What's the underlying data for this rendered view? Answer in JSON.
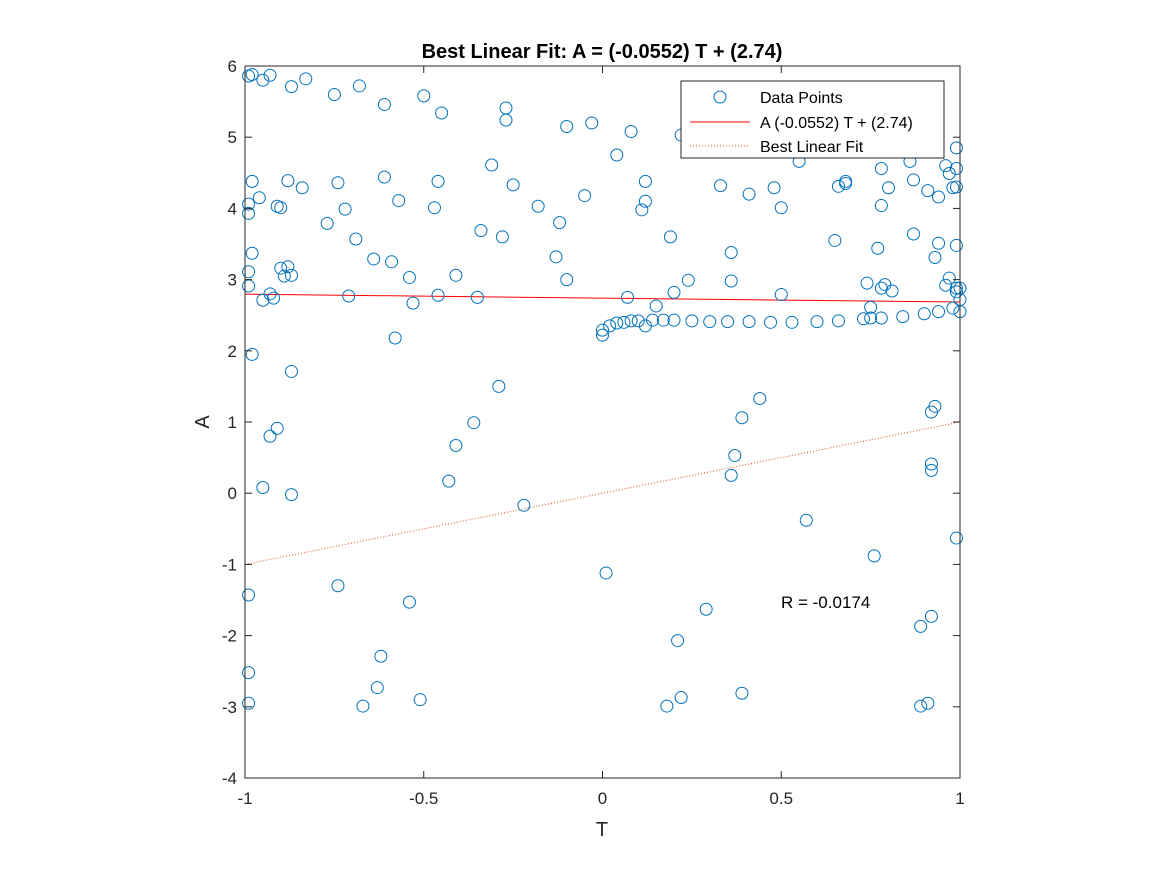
{
  "chart_data": {
    "type": "scatter",
    "title": "Best Linear Fit:  A = (-0.0552) T + (2.74)",
    "xlabel": "T",
    "ylabel": "A",
    "xlim": [
      -1,
      1
    ],
    "ylim": [
      -4,
      6
    ],
    "xticks": [
      -1,
      -0.5,
      0,
      0.5,
      1
    ],
    "xtick_labels": [
      "-1",
      "-0.5",
      "0",
      "0.5",
      "1"
    ],
    "yticks": [
      -4,
      -3,
      -2,
      -1,
      0,
      1,
      2,
      3,
      4,
      5,
      6
    ],
    "ytick_labels": [
      "-4",
      "-3",
      "-2",
      "-1",
      "0",
      "1",
      "2",
      "3",
      "4",
      "5",
      "6"
    ],
    "grid": false,
    "legend_position": "top-right",
    "annotation": "R = -0.0174",
    "colors": {
      "points": "#0072BD",
      "fit_line": "#FF0000",
      "best_line": "#D95319",
      "axes": "#262626"
    },
    "series": [
      {
        "name": "Data Points",
        "kind": "scatter",
        "marker": "open-circle",
        "points": [
          [
            -0.99,
            5.86
          ],
          [
            -0.98,
            5.88
          ],
          [
            -0.95,
            5.8
          ],
          [
            -0.93,
            5.87
          ],
          [
            -0.87,
            5.71
          ],
          [
            -0.83,
            5.82
          ],
          [
            -0.75,
            5.6
          ],
          [
            -0.68,
            5.72
          ],
          [
            -0.61,
            5.46
          ],
          [
            -0.5,
            5.58
          ],
          [
            -0.45,
            5.34
          ],
          [
            -0.27,
            5.41
          ],
          [
            -0.27,
            5.24
          ],
          [
            -0.1,
            5.15
          ],
          [
            -0.03,
            5.2
          ],
          [
            0.08,
            5.08
          ],
          [
            0.22,
            5.03
          ],
          [
            -0.98,
            4.38
          ],
          [
            -0.99,
            4.06
          ],
          [
            -0.96,
            4.15
          ],
          [
            -0.99,
            3.93
          ],
          [
            -0.91,
            4.03
          ],
          [
            -0.9,
            4.01
          ],
          [
            -0.88,
            4.39
          ],
          [
            -0.84,
            4.29
          ],
          [
            -0.74,
            4.36
          ],
          [
            -0.72,
            3.99
          ],
          [
            -0.77,
            3.79
          ],
          [
            -0.69,
            3.57
          ],
          [
            -0.61,
            4.44
          ],
          [
            -0.57,
            4.11
          ],
          [
            -0.47,
            4.01
          ],
          [
            -0.46,
            4.38
          ],
          [
            -0.31,
            4.61
          ],
          [
            -0.34,
            3.69
          ],
          [
            -0.28,
            3.6
          ],
          [
            -0.25,
            4.33
          ],
          [
            -0.18,
            4.03
          ],
          [
            -0.12,
            3.8
          ],
          [
            -0.05,
            4.18
          ],
          [
            0.04,
            4.75
          ],
          [
            0.12,
            4.38
          ],
          [
            0.12,
            4.1
          ],
          [
            0.11,
            3.98
          ],
          [
            0.19,
            3.6
          ],
          [
            0.33,
            4.32
          ],
          [
            0.41,
            4.2
          ],
          [
            0.48,
            4.29
          ],
          [
            0.5,
            4.01
          ],
          [
            0.55,
            4.66
          ],
          [
            0.66,
            4.31
          ],
          [
            0.68,
            4.38
          ],
          [
            0.68,
            4.35
          ],
          [
            0.78,
            4.56
          ],
          [
            0.8,
            4.29
          ],
          [
            0.78,
            4.04
          ],
          [
            0.86,
            4.66
          ],
          [
            0.87,
            4.4
          ],
          [
            0.91,
            4.25
          ],
          [
            0.94,
            4.16
          ],
          [
            0.96,
            4.6
          ],
          [
            0.97,
            4.49
          ],
          [
            0.98,
            4.29
          ],
          [
            0.99,
            4.3
          ],
          [
            0.99,
            4.85
          ],
          [
            0.99,
            4.56
          ],
          [
            -0.98,
            3.37
          ],
          [
            -0.99,
            3.11
          ],
          [
            -0.99,
            2.91
          ],
          [
            -0.9,
            3.16
          ],
          [
            -0.88,
            3.18
          ],
          [
            -0.89,
            3.05
          ],
          [
            -0.87,
            3.06
          ],
          [
            -0.93,
            2.8
          ],
          [
            -0.92,
            2.74
          ],
          [
            -0.95,
            2.71
          ],
          [
            -0.71,
            2.77
          ],
          [
            -0.64,
            3.29
          ],
          [
            -0.59,
            3.25
          ],
          [
            -0.54,
            3.03
          ],
          [
            -0.53,
            2.67
          ],
          [
            -0.46,
            2.78
          ],
          [
            -0.41,
            3.06
          ],
          [
            -0.35,
            2.75
          ],
          [
            -0.58,
            2.18
          ],
          [
            -0.13,
            3.32
          ],
          [
            -0.1,
            3.0
          ],
          [
            0.36,
            3.38
          ],
          [
            0.24,
            2.99
          ],
          [
            0.36,
            2.98
          ],
          [
            0.2,
            2.82
          ],
          [
            0.15,
            2.63
          ],
          [
            0.07,
            2.75
          ],
          [
            0.5,
            2.79
          ],
          [
            0.65,
            3.55
          ],
          [
            0.77,
            3.44
          ],
          [
            0.87,
            3.64
          ],
          [
            0.93,
            3.31
          ],
          [
            0.94,
            3.51
          ],
          [
            0.99,
            3.48
          ],
          [
            0.97,
            3.02
          ],
          [
            0.74,
            2.95
          ],
          [
            0.79,
            2.93
          ],
          [
            0.78,
            2.88
          ],
          [
            0.81,
            2.84
          ],
          [
            0.96,
            2.92
          ],
          [
            0.99,
            2.88
          ],
          [
            1.0,
            2.88
          ],
          [
            0.75,
            2.61
          ],
          [
            1.0,
            2.72
          ],
          [
            0.99,
            2.83
          ],
          [
            0.98,
            2.6
          ],
          [
            1.0,
            2.55
          ],
          [
            0.94,
            2.55
          ],
          [
            0.9,
            2.52
          ],
          [
            0.84,
            2.48
          ],
          [
            0.78,
            2.46
          ],
          [
            0.73,
            2.45
          ],
          [
            0.75,
            2.46
          ],
          [
            0.0,
            2.22
          ],
          [
            0.0,
            2.29
          ],
          [
            0.02,
            2.35
          ],
          [
            0.04,
            2.39
          ],
          [
            0.06,
            2.4
          ],
          [
            0.08,
            2.42
          ],
          [
            0.1,
            2.42
          ],
          [
            0.12,
            2.35
          ],
          [
            0.14,
            2.43
          ],
          [
            0.17,
            2.43
          ],
          [
            0.2,
            2.43
          ],
          [
            0.25,
            2.42
          ],
          [
            0.3,
            2.41
          ],
          [
            0.35,
            2.41
          ],
          [
            0.41,
            2.41
          ],
          [
            0.47,
            2.4
          ],
          [
            0.53,
            2.4
          ],
          [
            0.6,
            2.41
          ],
          [
            0.66,
            2.42
          ],
          [
            -0.98,
            1.95
          ],
          [
            -0.87,
            1.71
          ],
          [
            -0.91,
            0.91
          ],
          [
            -0.93,
            0.8
          ],
          [
            -0.95,
            0.08
          ],
          [
            -0.87,
            -0.02
          ],
          [
            -0.29,
            1.5
          ],
          [
            -0.36,
            0.99
          ],
          [
            -0.41,
            0.67
          ],
          [
            -0.43,
            0.17
          ],
          [
            -0.22,
            -0.17
          ],
          [
            0.44,
            1.33
          ],
          [
            0.39,
            1.06
          ],
          [
            0.37,
            0.53
          ],
          [
            0.36,
            0.25
          ],
          [
            0.93,
            1.22
          ],
          [
            0.92,
            1.14
          ],
          [
            0.92,
            0.41
          ],
          [
            0.92,
            0.32
          ],
          [
            0.57,
            -0.38
          ],
          [
            0.76,
            -0.88
          ],
          [
            0.99,
            -0.63
          ],
          [
            0.01,
            -1.12
          ],
          [
            -0.99,
            -1.43
          ],
          [
            -0.74,
            -1.3
          ],
          [
            -0.54,
            -1.53
          ],
          [
            0.29,
            -1.63
          ],
          [
            0.21,
            -2.07
          ],
          [
            0.89,
            -1.87
          ],
          [
            0.92,
            -1.73
          ],
          [
            -0.62,
            -2.29
          ],
          [
            -0.63,
            -2.73
          ],
          [
            -0.51,
            -2.9
          ],
          [
            -0.67,
            -2.99
          ],
          [
            -0.99,
            -2.52
          ],
          [
            -0.99,
            -2.95
          ],
          [
            0.18,
            -2.99
          ],
          [
            0.22,
            -2.87
          ],
          [
            0.39,
            -2.81
          ],
          [
            0.89,
            -2.99
          ],
          [
            0.91,
            -2.95
          ]
        ]
      },
      {
        "name": "A (-0.0552) T + (2.74)",
        "kind": "line",
        "style": "solid",
        "slope": -0.0552,
        "intercept": 2.74,
        "x": [
          -1,
          1
        ]
      },
      {
        "name": "Best Linear Fit",
        "kind": "line",
        "style": "dotted",
        "slope": 1,
        "intercept": 0,
        "x": [
          -1,
          1
        ]
      }
    ]
  }
}
